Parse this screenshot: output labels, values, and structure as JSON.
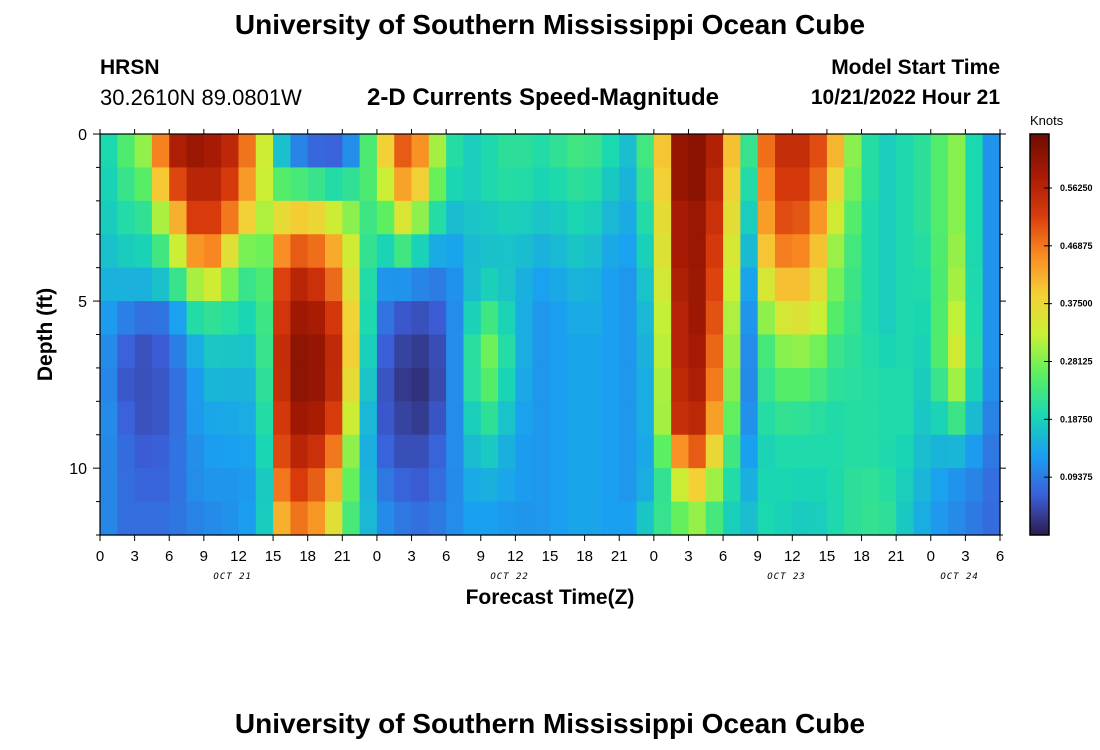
{
  "header": {
    "title": "University of Southern Mississippi Ocean Cube",
    "station": "HRSN",
    "coords": "30.2610N  89.0801W",
    "subtitle": "2-D Currents Speed-Magnitude",
    "model_start_label": "Model Start Time",
    "model_start_value": "10/21/2022 Hour 21"
  },
  "footer": {
    "title": "University of Southern Mississippi Ocean Cube"
  },
  "colorbar": {
    "label": "Knots",
    "ticks": [
      {
        "value": 0.09375,
        "label": "0.09375"
      },
      {
        "value": 0.1875,
        "label": "0.18750"
      },
      {
        "value": 0.28125,
        "label": "0.28125"
      },
      {
        "value": 0.375,
        "label": "0.37500"
      },
      {
        "value": 0.46875,
        "label": "0.46875"
      },
      {
        "value": 0.5625,
        "label": "0.56250"
      }
    ],
    "range": [
      0,
      0.65
    ],
    "colors": {
      "stops": [
        "#2e1b4d",
        "#3b5fd9",
        "#1aa0f0",
        "#1ad8b0",
        "#5cf060",
        "#c8f034",
        "#f4d036",
        "#f98a22",
        "#d83a0c",
        "#a51a04",
        "#6e0c02"
      ]
    }
  },
  "chart_data": {
    "type": "heatmap",
    "title": "2-D Currents Speed-Magnitude",
    "xlabel": "Forecast Time(Z)",
    "ylabel": "Depth (ft)",
    "value_unit": "Knots",
    "x_range_hours": [
      0,
      78
    ],
    "y_range_ft": [
      0,
      12
    ],
    "xticks": [
      {
        "h": 0,
        "label": "0"
      },
      {
        "h": 3,
        "label": "3"
      },
      {
        "h": 6,
        "label": "6"
      },
      {
        "h": 9,
        "label": "9"
      },
      {
        "h": 12,
        "label": "12"
      },
      {
        "h": 15,
        "label": "15"
      },
      {
        "h": 18,
        "label": "18"
      },
      {
        "h": 21,
        "label": "21"
      },
      {
        "h": 24,
        "label": "0"
      },
      {
        "h": 27,
        "label": "3"
      },
      {
        "h": 30,
        "label": "6"
      },
      {
        "h": 33,
        "label": "9"
      },
      {
        "h": 36,
        "label": "12"
      },
      {
        "h": 39,
        "label": "15"
      },
      {
        "h": 42,
        "label": "18"
      },
      {
        "h": 45,
        "label": "21"
      },
      {
        "h": 48,
        "label": "0"
      },
      {
        "h": 51,
        "label": "3"
      },
      {
        "h": 54,
        "label": "6"
      },
      {
        "h": 57,
        "label": "9"
      },
      {
        "h": 60,
        "label": "12"
      },
      {
        "h": 63,
        "label": "15"
      },
      {
        "h": 66,
        "label": "18"
      },
      {
        "h": 69,
        "label": "21"
      },
      {
        "h": 72,
        "label": "0"
      },
      {
        "h": 75,
        "label": "3"
      },
      {
        "h": 78,
        "label": "6"
      }
    ],
    "date_labels": [
      {
        "h": 11.5,
        "label": "OCT 21"
      },
      {
        "h": 35.5,
        "label": "OCT 22"
      },
      {
        "h": 59.5,
        "label": "OCT 23"
      },
      {
        "h": 74.5,
        "label": "OCT 24"
      }
    ],
    "yticks": [
      {
        "d": 0,
        "label": "0"
      },
      {
        "d": 5,
        "label": "5"
      },
      {
        "d": 10,
        "label": "10"
      }
    ],
    "depth_levels_ft": [
      0.5,
      1.5,
      2.5,
      3.5,
      4.5,
      5.5,
      6.5,
      7.5,
      8.5,
      9.5,
      10.5,
      11.5
    ],
    "speed_knots_by_hour": [
      {
        "t": 0,
        "v": [
          0.17,
          0.17,
          0.17,
          0.16,
          0.15,
          0.14,
          0.13,
          0.13,
          0.13,
          0.12,
          0.12,
          0.12
        ]
      },
      {
        "t": 2,
        "v": [
          0.24,
          0.22,
          0.2,
          0.18,
          0.15,
          0.1,
          0.07,
          0.06,
          0.07,
          0.08,
          0.08,
          0.08
        ]
      },
      {
        "t": 4,
        "v": [
          0.3,
          0.26,
          0.22,
          0.19,
          0.15,
          0.08,
          0.05,
          0.05,
          0.05,
          0.06,
          0.07,
          0.08
        ]
      },
      {
        "t": 6,
        "v": [
          0.56,
          0.48,
          0.36,
          0.26,
          0.18,
          0.09,
          0.07,
          0.06,
          0.06,
          0.07,
          0.07,
          0.08
        ]
      },
      {
        "t": 8,
        "v": [
          0.6,
          0.56,
          0.52,
          0.44,
          0.3,
          0.2,
          0.14,
          0.12,
          0.12,
          0.11,
          0.11,
          0.1
        ]
      },
      {
        "t": 10,
        "v": [
          0.58,
          0.56,
          0.52,
          0.46,
          0.34,
          0.22,
          0.18,
          0.16,
          0.14,
          0.13,
          0.12,
          0.11
        ]
      },
      {
        "t": 12,
        "v": [
          0.54,
          0.5,
          0.44,
          0.3,
          0.24,
          0.2,
          0.17,
          0.15,
          0.14,
          0.13,
          0.12,
          0.12
        ]
      },
      {
        "t": 14,
        "v": [
          0.36,
          0.34,
          0.3,
          0.24,
          0.2,
          0.18,
          0.17,
          0.16,
          0.15,
          0.14,
          0.13,
          0.14
        ]
      },
      {
        "t": 16,
        "v": [
          0.14,
          0.24,
          0.38,
          0.48,
          0.56,
          0.58,
          0.6,
          0.6,
          0.58,
          0.56,
          0.52,
          0.46
        ]
      },
      {
        "t": 18,
        "v": [
          0.08,
          0.24,
          0.4,
          0.5,
          0.56,
          0.6,
          0.62,
          0.62,
          0.6,
          0.56,
          0.52,
          0.48
        ]
      },
      {
        "t": 20,
        "v": [
          0.06,
          0.2,
          0.34,
          0.44,
          0.5,
          0.55,
          0.58,
          0.58,
          0.55,
          0.5,
          0.44,
          0.38
        ]
      },
      {
        "t": 22,
        "v": [
          0.12,
          0.22,
          0.28,
          0.32,
          0.34,
          0.36,
          0.36,
          0.34,
          0.3,
          0.26,
          0.24,
          0.22
        ]
      },
      {
        "t": 24,
        "v": [
          0.32,
          0.26,
          0.2,
          0.16,
          0.12,
          0.1,
          0.08,
          0.07,
          0.07,
          0.08,
          0.1,
          0.12
        ]
      },
      {
        "t": 26,
        "v": [
          0.5,
          0.44,
          0.36,
          0.24,
          0.12,
          0.06,
          0.04,
          0.03,
          0.04,
          0.05,
          0.07,
          0.09
        ]
      },
      {
        "t": 28,
        "v": [
          0.44,
          0.38,
          0.28,
          0.18,
          0.1,
          0.05,
          0.03,
          0.02,
          0.03,
          0.05,
          0.06,
          0.08
        ]
      },
      {
        "t": 30,
        "v": [
          0.22,
          0.2,
          0.16,
          0.12,
          0.09,
          0.07,
          0.06,
          0.06,
          0.07,
          0.08,
          0.09,
          0.1
        ]
      },
      {
        "t": 32,
        "v": [
          0.18,
          0.18,
          0.17,
          0.16,
          0.16,
          0.18,
          0.2,
          0.2,
          0.18,
          0.16,
          0.14,
          0.13
        ]
      },
      {
        "t": 34,
        "v": [
          0.2,
          0.2,
          0.18,
          0.17,
          0.19,
          0.24,
          0.28,
          0.26,
          0.22,
          0.18,
          0.15,
          0.13
        ]
      },
      {
        "t": 36,
        "v": [
          0.22,
          0.21,
          0.19,
          0.17,
          0.16,
          0.16,
          0.16,
          0.15,
          0.14,
          0.13,
          0.13,
          0.12
        ]
      },
      {
        "t": 38,
        "v": [
          0.2,
          0.19,
          0.17,
          0.15,
          0.13,
          0.12,
          0.12,
          0.12,
          0.12,
          0.12,
          0.12,
          0.12
        ]
      },
      {
        "t": 40,
        "v": [
          0.22,
          0.2,
          0.18,
          0.16,
          0.14,
          0.13,
          0.13,
          0.13,
          0.13,
          0.13,
          0.13,
          0.13
        ]
      },
      {
        "t": 42,
        "v": [
          0.24,
          0.22,
          0.2,
          0.18,
          0.16,
          0.15,
          0.14,
          0.14,
          0.14,
          0.14,
          0.14,
          0.14
        ]
      },
      {
        "t": 44,
        "v": [
          0.2,
          0.18,
          0.16,
          0.14,
          0.13,
          0.13,
          0.13,
          0.13,
          0.13,
          0.13,
          0.13,
          0.13
        ]
      },
      {
        "t": 46,
        "v": [
          0.16,
          0.15,
          0.14,
          0.13,
          0.12,
          0.12,
          0.12,
          0.12,
          0.12,
          0.12,
          0.12,
          0.13
        ]
      },
      {
        "t": 48,
        "v": [
          0.28,
          0.26,
          0.24,
          0.22,
          0.2,
          0.18,
          0.17,
          0.16,
          0.16,
          0.15,
          0.16,
          0.2
        ]
      },
      {
        "t": 50,
        "v": [
          0.6,
          0.6,
          0.58,
          0.58,
          0.57,
          0.56,
          0.56,
          0.55,
          0.54,
          0.44,
          0.32,
          0.26
        ]
      },
      {
        "t": 52,
        "v": [
          0.62,
          0.62,
          0.6,
          0.6,
          0.6,
          0.6,
          0.59,
          0.58,
          0.56,
          0.5,
          0.4,
          0.3
        ]
      },
      {
        "t": 54,
        "v": [
          0.54,
          0.52,
          0.5,
          0.48,
          0.46,
          0.44,
          0.42,
          0.4,
          0.36,
          0.3,
          0.24,
          0.2
        ]
      },
      {
        "t": 56,
        "v": [
          0.18,
          0.16,
          0.14,
          0.12,
          0.1,
          0.09,
          0.09,
          0.09,
          0.1,
          0.12,
          0.14,
          0.16
        ]
      },
      {
        "t": 58,
        "v": [
          0.52,
          0.5,
          0.48,
          0.44,
          0.38,
          0.32,
          0.26,
          0.24,
          0.22,
          0.2,
          0.2,
          0.2
        ]
      },
      {
        "t": 60,
        "v": [
          0.56,
          0.54,
          0.52,
          0.48,
          0.42,
          0.36,
          0.3,
          0.26,
          0.22,
          0.2,
          0.19,
          0.18
        ]
      },
      {
        "t": 62,
        "v": [
          0.52,
          0.5,
          0.46,
          0.42,
          0.38,
          0.34,
          0.28,
          0.24,
          0.21,
          0.2,
          0.19,
          0.18
        ]
      },
      {
        "t": 64,
        "v": [
          0.4,
          0.36,
          0.32,
          0.28,
          0.26,
          0.24,
          0.22,
          0.21,
          0.2,
          0.2,
          0.2,
          0.2
        ]
      },
      {
        "t": 66,
        "v": [
          0.22,
          0.22,
          0.21,
          0.21,
          0.21,
          0.21,
          0.21,
          0.21,
          0.21,
          0.21,
          0.22,
          0.22
        ]
      },
      {
        "t": 68,
        "v": [
          0.18,
          0.18,
          0.18,
          0.18,
          0.18,
          0.18,
          0.19,
          0.2,
          0.2,
          0.2,
          0.21,
          0.22
        ]
      },
      {
        "t": 70,
        "v": [
          0.2,
          0.2,
          0.2,
          0.2,
          0.2,
          0.2,
          0.2,
          0.2,
          0.2,
          0.19,
          0.18,
          0.17
        ]
      },
      {
        "t": 72,
        "v": [
          0.22,
          0.22,
          0.22,
          0.21,
          0.2,
          0.19,
          0.18,
          0.17,
          0.16,
          0.15,
          0.14,
          0.13
        ]
      },
      {
        "t": 74,
        "v": [
          0.3,
          0.3,
          0.3,
          0.31,
          0.32,
          0.34,
          0.36,
          0.32,
          0.24,
          0.16,
          0.12,
          0.11
        ]
      },
      {
        "t": 76,
        "v": [
          0.18,
          0.18,
          0.18,
          0.18,
          0.18,
          0.18,
          0.18,
          0.17,
          0.15,
          0.12,
          0.1,
          0.09
        ]
      },
      {
        "t": 78,
        "v": [
          0.08,
          0.08,
          0.08,
          0.08,
          0.08,
          0.08,
          0.08,
          0.08,
          0.07,
          0.07,
          0.07,
          0.07
        ]
      }
    ]
  }
}
